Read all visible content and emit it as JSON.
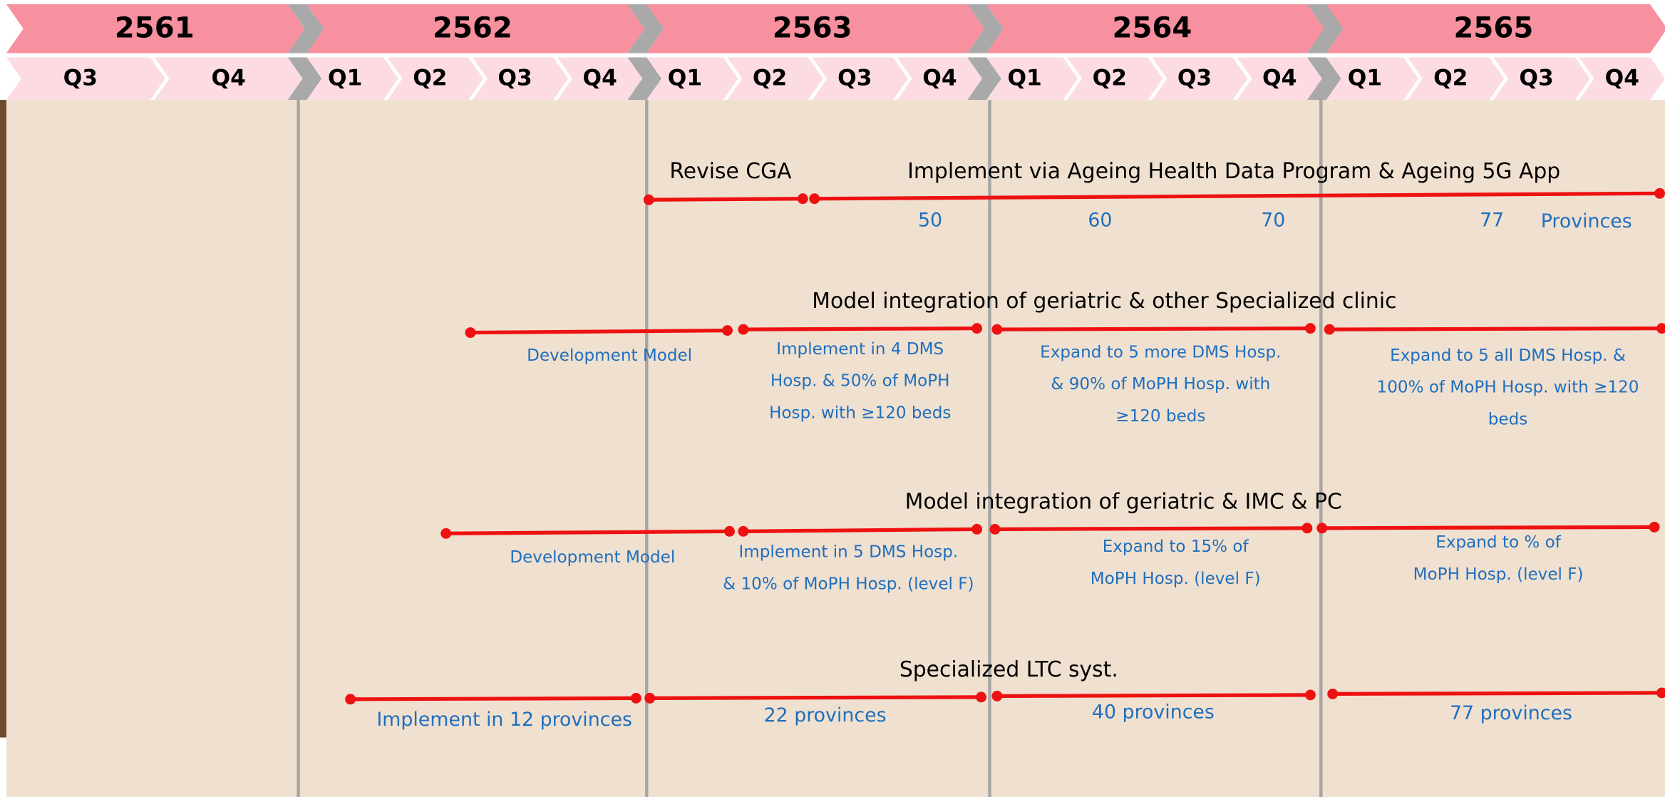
{
  "years": [
    "2561",
    "2562",
    "2563",
    "2564",
    "2565"
  ],
  "quarters": [
    [
      "Q3",
      "Q4"
    ],
    [
      "Q1",
      "Q2",
      "Q3",
      "Q4"
    ],
    [
      "Q1",
      "Q2",
      "Q3",
      "Q4"
    ],
    [
      "Q1",
      "Q2",
      "Q3",
      "Q4"
    ],
    [
      "Q1",
      "Q2",
      "Q3",
      "Q4"
    ]
  ],
  "rows": [
    {
      "title": "Implement via Ageing Health Data Program & Ageing 5G App",
      "labels": [
        [
          "Revise CGA"
        ]
      ],
      "counts": [
        50,
        60,
        70,
        77
      ],
      "counts_unit": "Provinces"
    },
    {
      "title": "Model integration of geriatric & other Specialized clinic",
      "labels": [
        [
          "Development Model"
        ],
        [
          "Implement in 4 DMS",
          "Hosp. & 50% of MoPH",
          "Hosp. with ≥120 beds"
        ],
        [
          "Expand to 5 more DMS Hosp.",
          "& 90% of MoPH Hosp. with",
          "≥120 beds"
        ],
        [
          "Expand to 5 all DMS Hosp. &",
          "100% of MoPH Hosp. with ≥120",
          "beds"
        ]
      ]
    },
    {
      "title": "Model integration of geriatric & IMC & PC",
      "labels": [
        [
          "Development Model"
        ],
        [
          "Implement in 5 DMS Hosp.",
          "& 10% of MoPH Hosp. (level F)"
        ],
        [
          "Expand to 15% of",
          "MoPH Hosp. (level F)"
        ],
        [
          "Expand to % of",
          "MoPH Hosp. (level F)"
        ]
      ]
    },
    {
      "title": "Specialized LTC syst.",
      "labels": [
        [
          "Implement in 12 provinces"
        ],
        [
          "22 provinces"
        ],
        [
          "40 provinces"
        ],
        [
          "77 provinces"
        ]
      ]
    }
  ]
}
